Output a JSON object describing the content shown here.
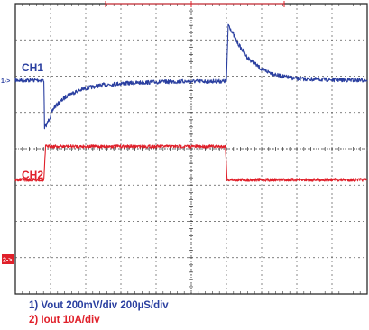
{
  "chart_data": {
    "type": "line",
    "grid": true,
    "x_divisions": 10,
    "y_divisions": 8,
    "channels": [
      {
        "id": "ch1",
        "tag": "CH1",
        "marker": "1->",
        "color": "#2a3fa0"
      },
      {
        "id": "ch2",
        "tag": "CH2",
        "marker": "2->",
        "color": "#e0202a"
      }
    ],
    "series": [
      {
        "channel": "ch1",
        "x_unit": "div",
        "y_unit": "div above CH1 marker",
        "x": [
          0,
          0.81,
          0.83,
          0.9,
          1.1,
          1.5,
          2.0,
          2.5,
          3.0,
          3.5,
          4.0,
          5.0,
          6.0,
          6.05,
          6.1,
          6.3,
          6.6,
          7.0,
          7.5,
          8.0,
          9.0,
          10.0
        ],
        "y": [
          0,
          0,
          -1.3,
          -1.2,
          -0.75,
          -0.4,
          -0.22,
          -0.13,
          -0.09,
          -0.07,
          -0.05,
          -0.03,
          -0.03,
          1.55,
          1.45,
          1.05,
          0.62,
          0.3,
          0.12,
          0.04,
          0.01,
          0
        ]
      },
      {
        "channel": "ch2",
        "x_unit": "div",
        "y_unit": "div above CH2 marker",
        "x": [
          0,
          0.81,
          0.86,
          5.97,
          6.02,
          10.0
        ],
        "y": [
          2.2,
          2.2,
          3.12,
          3.12,
          2.2,
          2.2
        ]
      }
    ],
    "captions": {
      "line1": "1) Vout 200mV/div  200µS/div",
      "line2": "2) Iout 10A/div"
    }
  }
}
